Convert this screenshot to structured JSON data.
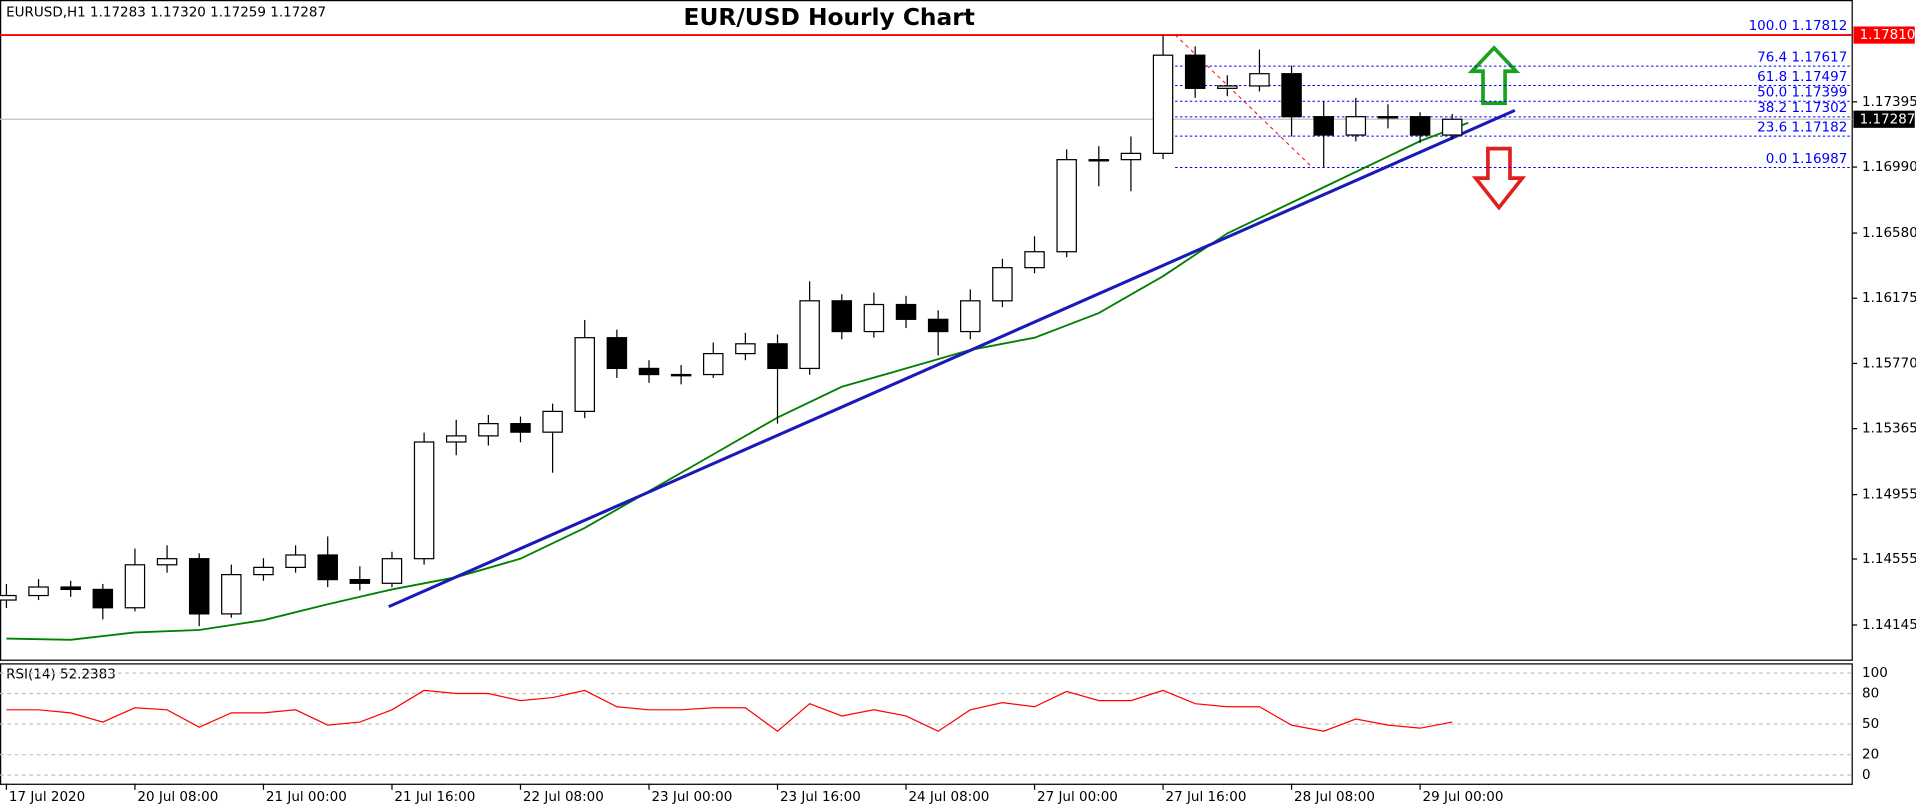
{
  "chart_data": {
    "type": "candlestick",
    "title": "EUR/USD Hourly Chart",
    "info": "EURUSD,H1  1.17283 1.17320 1.17259 1.17287",
    "xlim": [
      -0.8,
      229.8
    ],
    "xticks": [
      {
        "value": 0,
        "label": "17 Jul 2020"
      },
      {
        "value": 16,
        "label": "20 Jul 08:00"
      },
      {
        "value": 32,
        "label": "21 Jul 00:00"
      },
      {
        "value": 48,
        "label": "21 Jul 16:00"
      },
      {
        "value": 64,
        "label": "22 Jul 08:00"
      },
      {
        "value": 80,
        "label": "23 Jul 00:00"
      },
      {
        "value": 96,
        "label": "23 Jul 16:00"
      },
      {
        "value": 112,
        "label": "24 Jul 08:00"
      },
      {
        "value": 128,
        "label": "27 Jul 00:00"
      },
      {
        "value": 144,
        "label": "27 Jul 16:00"
      },
      {
        "value": 160,
        "label": "28 Jul 08:00"
      },
      {
        "value": 176,
        "label": "29 Jul 00:00"
      }
    ],
    "ylim": [
      1.1393,
      1.1786
    ],
    "yticks": [
      1.14145,
      1.14555,
      1.14955,
      1.15365,
      {
        "value": 1.1577,
        "label": "1.15770"
      },
      1.16175,
      {
        "value": 1.1658,
        "label": "1.16580"
      },
      {
        "value": 1.1699,
        "label": "1.16990"
      },
      1.17395
    ],
    "up_color": "#ffffff",
    "down_color": "#000000",
    "x": [
      0,
      4,
      8,
      12,
      16,
      20,
      24,
      28,
      32,
      36,
      40,
      44,
      48,
      52,
      56,
      60,
      64,
      68,
      72,
      76,
      80,
      84,
      88,
      92,
      96,
      100,
      104,
      108,
      112,
      116,
      120,
      124,
      128,
      132,
      136,
      140,
      144,
      148,
      152,
      156,
      160,
      164,
      168,
      172,
      176,
      180
    ],
    "open": [
      1.143,
      1.14328,
      1.14381,
      1.14366,
      1.14252,
      1.14519,
      1.14557,
      1.14214,
      1.14458,
      1.14503,
      1.1458,
      1.14427,
      1.14404,
      1.14557,
      1.15282,
      1.1532,
      1.15396,
      1.15343,
      1.15472,
      1.1593,
      1.15739,
      1.15701,
      1.15701,
      1.15831,
      1.15892,
      1.15739,
      1.16159,
      1.15968,
      1.16136,
      1.16044,
      1.15968,
      1.16159,
      1.16365,
      1.16464,
      1.17036,
      1.17036,
      1.17075,
      1.17685,
      1.17479,
      1.17494,
      1.1757,
      1.17303,
      1.17189,
      1.17303,
      1.17303,
      1.17189
    ],
    "high": [
      1.144,
      1.1443,
      1.1442,
      1.144,
      1.1462,
      1.1464,
      1.1459,
      1.1452,
      1.1456,
      1.1464,
      1.14695,
      1.1451,
      1.146,
      1.1534,
      1.1542,
      1.1545,
      1.1544,
      1.1552,
      1.1604,
      1.1598,
      1.1579,
      1.1576,
      1.159,
      1.1596,
      1.1595,
      1.1628,
      1.162,
      1.1621,
      1.1619,
      1.161,
      1.1623,
      1.1642,
      1.1656,
      1.171,
      1.1712,
      1.1718,
      1.1781,
      1.1774,
      1.1756,
      1.1772,
      1.1762,
      1.174,
      1.1742,
      1.1738,
      1.1733,
      1.1732
    ],
    "low": [
      1.1425,
      1.143,
      1.1432,
      1.1418,
      1.1423,
      1.1447,
      1.14138,
      1.1419,
      1.1442,
      1.1447,
      1.1438,
      1.1436,
      1.1438,
      1.1452,
      1.152,
      1.1526,
      1.1528,
      1.15091,
      1.1543,
      1.1568,
      1.1565,
      1.1564,
      1.1568,
      1.1579,
      1.15396,
      1.157,
      1.1592,
      1.1593,
      1.1599,
      1.1582,
      1.1592,
      1.1612,
      1.1633,
      1.1643,
      1.1687,
      1.1684,
      1.1704,
      1.1742,
      1.1743,
      1.1746,
      1.1718,
      1.16987,
      1.1715,
      1.1723,
      1.1714,
      1.1716
    ],
    "close": [
      1.14328,
      1.14381,
      1.14366,
      1.14252,
      1.14519,
      1.14557,
      1.14214,
      1.14458,
      1.14503,
      1.1458,
      1.14427,
      1.14404,
      1.14557,
      1.15282,
      1.1532,
      1.15396,
      1.15343,
      1.15472,
      1.1593,
      1.15739,
      1.15701,
      1.15701,
      1.15831,
      1.15892,
      1.15739,
      1.16159,
      1.15968,
      1.16136,
      1.16044,
      1.15968,
      1.16159,
      1.16365,
      1.16464,
      1.17036,
      1.17036,
      1.17075,
      1.17685,
      1.17479,
      1.17494,
      1.1757,
      1.17303,
      1.17189,
      1.17303,
      1.17303,
      1.17189,
      1.17287
    ],
    "moving_average": {
      "color": "#008000",
      "x": [
        0,
        8,
        16,
        24,
        32,
        40,
        48,
        56,
        64,
        72,
        80,
        88,
        96,
        104,
        112,
        120,
        128,
        136,
        144,
        152,
        160,
        168,
        176,
        182
      ],
      "values": [
        1.14061,
        1.14053,
        1.14099,
        1.14114,
        1.14175,
        1.14274,
        1.14366,
        1.14442,
        1.14557,
        1.14748,
        1.14976,
        1.15205,
        1.15434,
        1.15625,
        1.15739,
        1.15854,
        1.1593,
        1.16083,
        1.16312,
        1.16578,
        1.16769,
        1.1696,
        1.17151,
        1.17265
      ]
    },
    "trendline": {
      "color": "#1a1ab8",
      "x": [
        47.6,
        187.8
      ],
      "values": [
        1.14259,
        1.17342
      ]
    },
    "fibonacci": {
      "color": "#0000ff",
      "x": [
        145.5,
        162.6
      ],
      "levels": [
        {
          "value": 1.17812,
          "label": "100.0 1.17812"
        },
        {
          "value": 1.17617,
          "label": "76.4 1.17617"
        },
        {
          "value": 1.17497,
          "label": "61.8 1.17497"
        },
        {
          "value": 1.17399,
          "label": "50.0 1.17399"
        },
        {
          "value": 1.17302,
          "label": "38.2 1.17302"
        },
        {
          "value": 1.17182,
          "label": "23.6 1.17182"
        },
        {
          "value": 1.16987,
          "label": "0.0 1.16987"
        }
      ]
    },
    "price_lines": [
      {
        "value": 1.1781,
        "label": "1.17810",
        "color": "#ff0000"
      },
      {
        "value": 1.17287,
        "label": "1.17287",
        "color": "#000000"
      }
    ],
    "rsi": {
      "label": "RSI(14) 52.2383",
      "color": "#ff0000",
      "ylim": [
        -8.4,
        108.4
      ],
      "yticks": [
        100,
        80,
        50,
        20,
        0
      ],
      "values": [
        64,
        64,
        61,
        52,
        66,
        64,
        47,
        61,
        61,
        64,
        49,
        52,
        64,
        83,
        80,
        80,
        73,
        76,
        83,
        67,
        64,
        64,
        66,
        66,
        43,
        70,
        58,
        64,
        58,
        43,
        64,
        71,
        67,
        82,
        73,
        73,
        83,
        70,
        67,
        67,
        49,
        43,
        55,
        49,
        46,
        52
      ]
    }
  }
}
